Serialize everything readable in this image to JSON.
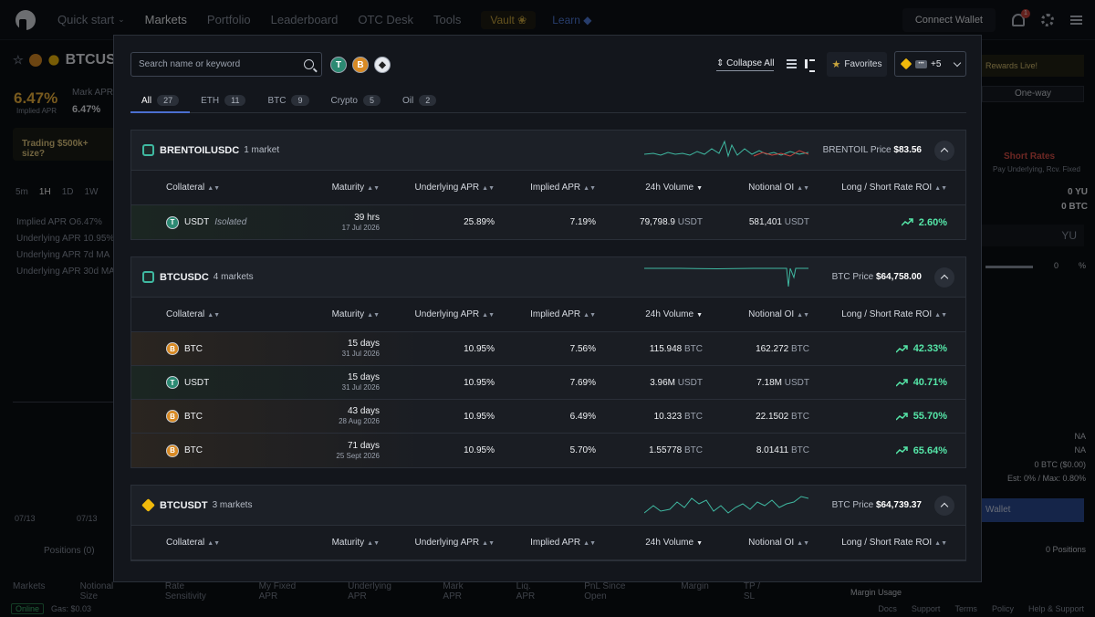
{
  "nav": {
    "items": [
      "Quick start",
      "Markets",
      "Portfolio",
      "Leaderboard",
      "OTC Desk",
      "Tools"
    ],
    "vault": "Vault",
    "learn": "Learn",
    "connect": "Connect Wallet",
    "notif_count": "1"
  },
  "background": {
    "pair": "BTCUS",
    "implied_apr": "6.47%",
    "implied_apr_label": "Implied APR",
    "mark_apr_label": "Mark APR",
    "mark_apr": "6.47%",
    "trading_banner": "Trading $500k+ size?",
    "timeframes": [
      "5m",
      "1H",
      "1D",
      "1W"
    ],
    "legend": [
      "Implied APR  O6.47%",
      "Underlying APR  10.95%",
      "Underlying APR 7d MA",
      "Underlying APR 30d MA"
    ],
    "dates": [
      "07/13",
      "07/13"
    ],
    "positions": "Positions (0)",
    "table_headers": [
      "Markets",
      "Notional Size",
      "Rate Sensitivity",
      "My Fixed APR",
      "Underlying APR",
      "Mark APR",
      "Liq. APR",
      "PnL Since Open",
      "Margin",
      "TP / SL"
    ],
    "online": "Online",
    "gas": "Gas: $0.03",
    "footer_links": [
      "Docs",
      "Support",
      "Terms",
      "Policy",
      "Help & Support"
    ],
    "rewards": "Rewards Live!",
    "one_way": "One-way",
    "short_rates": "Short Rates",
    "short_rates_sub": "Pay Underlying, Rcv. Fixed",
    "balance_yu": "0 YU",
    "balance_btc": "0 BTC",
    "input_unit": "YU",
    "slider_pct": "0",
    "pct": "%",
    "na1": "NA",
    "na2": "NA",
    "btc_usd": "0 BTC ($0.00)",
    "est": "Est: 0% / Max: 0.80%",
    "wallet_btn": "Wallet",
    "positions_right": "0 Positions",
    "margin_usage": "Margin Usage"
  },
  "modal": {
    "search_placeholder": "Search name or keyword",
    "collapse_all": "Collapse All",
    "favorites": "Favorites",
    "exchange_more": "+5",
    "exchange_badge": "•••",
    "tabs": [
      {
        "label": "All",
        "count": "27"
      },
      {
        "label": "ETH",
        "count": "11"
      },
      {
        "label": "BTC",
        "count": "9"
      },
      {
        "label": "Crypto",
        "count": "5"
      },
      {
        "label": "Oil",
        "count": "2"
      }
    ],
    "columns": [
      "Collateral",
      "Maturity",
      "Underlying APR",
      "Implied APR",
      "24h Volume",
      "Notional OI",
      "Long / Short Rate ROI"
    ],
    "groups": [
      {
        "name": "BRENTOILUSDC",
        "count": "1 market",
        "price_label": "BRENTOIL Price",
        "price": "$83.56",
        "rows": [
          {
            "coin": "USDT",
            "isolated": "Isolated",
            "mat": "39 hrs",
            "date": "17 Jul 2026",
            "und": "25.89%",
            "imp": "7.19%",
            "vol": "79,798.9",
            "vol_unit": "USDT",
            "oi": "581,401",
            "oi_unit": "USDT",
            "roi": "2.60%"
          }
        ]
      },
      {
        "name": "BTCUSDC",
        "count": "4 markets",
        "price_label": "BTC Price",
        "price": "$64,758.00",
        "rows": [
          {
            "coin": "BTC",
            "mat": "15 days",
            "date": "31 Jul 2026",
            "und": "10.95%",
            "imp": "7.56%",
            "vol": "115.948",
            "vol_unit": "BTC",
            "oi": "162.272",
            "oi_unit": "BTC",
            "roi": "42.33%"
          },
          {
            "coin": "USDT",
            "mat": "15 days",
            "date": "31 Jul 2026",
            "und": "10.95%",
            "imp": "7.69%",
            "vol": "3.96M",
            "vol_unit": "USDT",
            "oi": "7.18M",
            "oi_unit": "USDT",
            "roi": "40.71%"
          },
          {
            "coin": "BTC",
            "mat": "43 days",
            "date": "28 Aug 2026",
            "und": "10.95%",
            "imp": "6.49%",
            "vol": "10.323",
            "vol_unit": "BTC",
            "oi": "22.1502",
            "oi_unit": "BTC",
            "roi": "55.70%"
          },
          {
            "coin": "BTC",
            "mat": "71 days",
            "date": "25 Sept 2026",
            "und": "10.95%",
            "imp": "5.70%",
            "vol": "1.55778",
            "vol_unit": "BTC",
            "oi": "8.01411",
            "oi_unit": "BTC",
            "roi": "65.64%"
          }
        ]
      },
      {
        "name": "BTCUSDT",
        "count": "3 markets",
        "price_label": "BTC Price",
        "price": "$64,739.37",
        "rows": []
      }
    ]
  },
  "colors": {
    "accent": "#4b6fd0",
    "roi_green": "#55e6a8",
    "btc_orange": "#d88a24",
    "tether_green": "#2c8a73",
    "vault_gold": "#c9a53d"
  }
}
